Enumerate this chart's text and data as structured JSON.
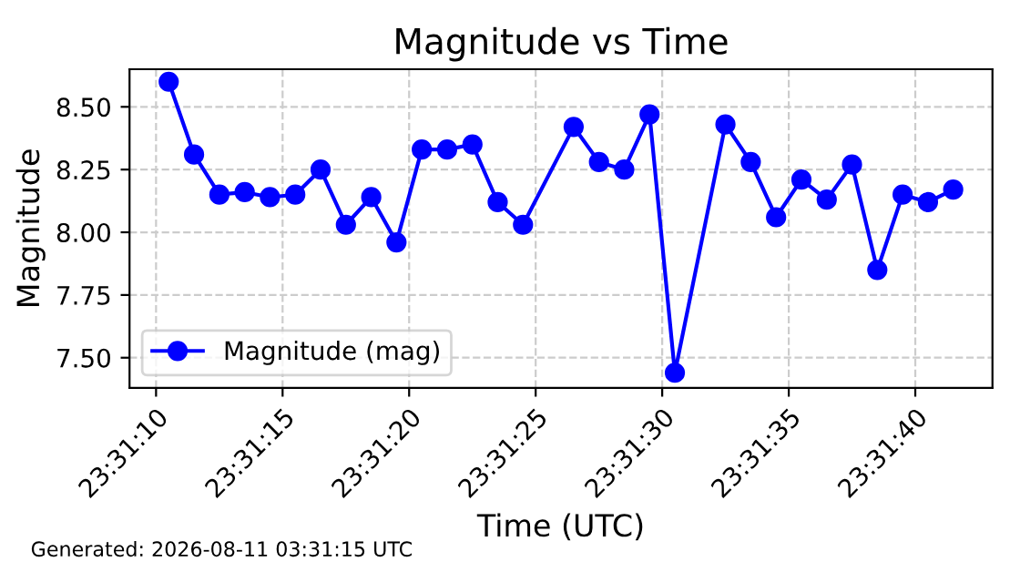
{
  "chart_data": {
    "type": "line",
    "title": "Magnitude vs Time",
    "xlabel": "Time (UTC)",
    "ylabel": "Magnitude",
    "x": [
      23.519583,
      23.519861,
      23.520139,
      23.520417,
      23.520694,
      23.520972,
      23.52125,
      23.521528,
      23.521806,
      23.522083,
      23.522361,
      23.522639,
      23.522917,
      23.523194,
      23.523472,
      23.524028,
      23.524306,
      23.524583,
      23.524861,
      23.525139,
      23.525694,
      23.525972,
      23.52625,
      23.526528,
      23.526806,
      23.527083,
      23.527361,
      23.527639,
      23.527917,
      23.528194
    ],
    "series": [
      {
        "name": "Magnitude (mag)",
        "color": "#0000ff",
        "values": [
          8.6,
          8.31,
          8.15,
          8.16,
          8.14,
          8.15,
          8.25,
          8.03,
          8.14,
          7.96,
          8.33,
          8.33,
          8.35,
          8.12,
          8.03,
          8.42,
          8.28,
          8.25,
          8.47,
          7.44,
          8.43,
          8.28,
          8.06,
          8.21,
          8.13,
          8.27,
          7.85,
          8.15,
          8.12,
          8.17
        ]
      }
    ],
    "xlim": [
      23.519153,
      23.528625
    ],
    "xticks": [
      {
        "value": 23.519444,
        "label": "23:31:10"
      },
      {
        "value": 23.520833,
        "label": "23:31:15"
      },
      {
        "value": 23.522222,
        "label": "23:31:20"
      },
      {
        "value": 23.523611,
        "label": "23:31:25"
      },
      {
        "value": 23.525,
        "label": "23:31:30"
      },
      {
        "value": 23.526389,
        "label": "23:31:35"
      },
      {
        "value": 23.527778,
        "label": "23:31:40"
      }
    ],
    "ylim": [
      7.38,
      8.65
    ],
    "yticks": [
      {
        "value": 7.5,
        "label": "7.50"
      },
      {
        "value": 7.75,
        "label": "7.75"
      },
      {
        "value": 8.0,
        "label": "8.00"
      },
      {
        "value": 8.25,
        "label": "8.25"
      },
      {
        "value": 8.5,
        "label": "8.50"
      }
    ],
    "grid": true,
    "legend": "bottom left",
    "marker": "circle",
    "line_style": "solid",
    "annotations": [
      "Generated: 2026-08-11 03:31:15 UTC"
    ]
  }
}
